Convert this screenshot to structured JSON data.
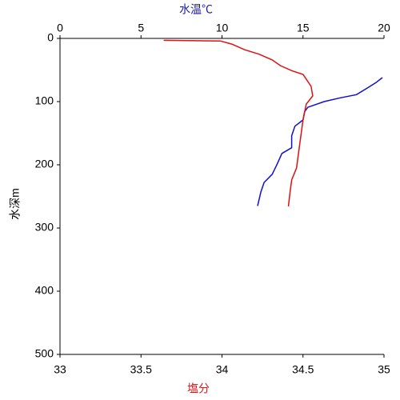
{
  "chart_data": {
    "type": "line",
    "top_axis_label": "水温℃",
    "top_axis_color": "#1a1aa6",
    "bottom_axis_label": "塩分",
    "bottom_axis_color": "#d41a1a",
    "y_axis_label": "水深m",
    "ylim": [
      0,
      500
    ],
    "yticks": [
      0,
      100,
      200,
      300,
      400,
      500
    ],
    "y_inverted": true,
    "x2lim": [
      0,
      20
    ],
    "x2ticks": [
      0,
      5,
      10,
      15,
      20
    ],
    "xlim": [
      33,
      35
    ],
    "xticks": [
      33,
      33.5,
      34,
      34.5,
      35
    ],
    "series": [
      {
        "color": "#1010c8",
        "axis": "x2",
        "values": [
          19.9,
          19.5,
          19.0,
          18.3,
          17.3,
          16.3,
          15.3,
          15.1,
          15.0,
          14.5,
          14.3,
          14.3,
          13.7,
          13.4,
          13.1,
          12.6,
          12.4,
          12.2
        ],
        "depth": [
          62,
          70,
          78,
          89,
          94,
          100,
          109,
          116,
          129,
          139,
          154,
          173,
          182,
          199,
          215,
          228,
          243,
          265
        ]
      },
      {
        "color": "#e01010",
        "axis": "x",
        "values": [
          33.64,
          33.99,
          34.06,
          34.14,
          34.23,
          34.31,
          34.36,
          34.43,
          34.5,
          34.55,
          34.56,
          34.52,
          34.5,
          34.48,
          34.46,
          34.43,
          34.42,
          34.41
        ],
        "depth": [
          3,
          4,
          9,
          18,
          25,
          34,
          43,
          51,
          57,
          76,
          91,
          104,
          129,
          167,
          205,
          224,
          243,
          266
        ]
      }
    ]
  }
}
